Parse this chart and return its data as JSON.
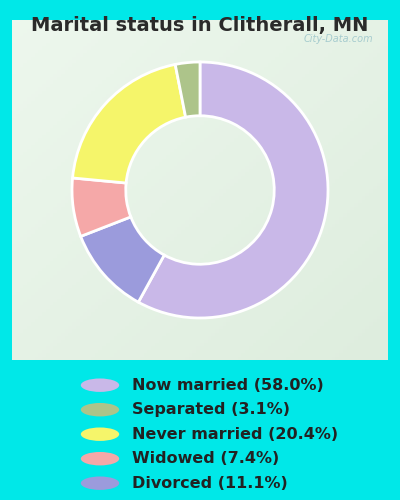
{
  "title": "Marital status in Clitherall, MN",
  "slices": [
    {
      "label": "Now married (58.0%)",
      "value": 58.0,
      "color": "#c9b8e8"
    },
    {
      "label": "Separated (3.1%)",
      "value": 3.1,
      "color": "#adc48a"
    },
    {
      "label": "Never married (20.4%)",
      "value": 20.4,
      "color": "#f5f56a"
    },
    {
      "label": "Widowed (7.4%)",
      "value": 7.4,
      "color": "#f5a8a8"
    },
    {
      "label": "Divorced (11.1%)",
      "value": 11.1,
      "color": "#9b9bdc"
    }
  ],
  "bg_outer": "#00e8e8",
  "bg_chart_tl": "#e8f5e8",
  "bg_chart_br": "#d8ecd8",
  "title_fontsize": 14,
  "legend_fontsize": 11.5,
  "watermark": "City-Data.com",
  "donut_width": 0.42
}
